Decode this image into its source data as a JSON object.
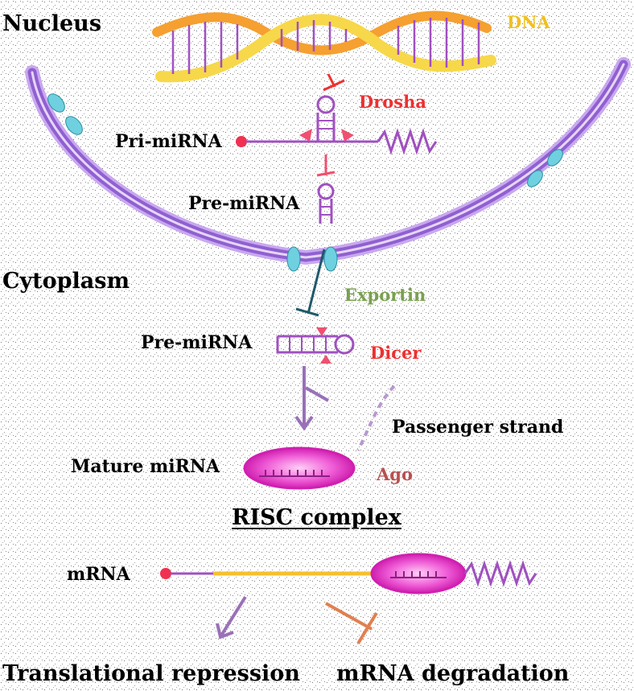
{
  "regions": {
    "nucleus": "Nucleus",
    "cytoplasm": "Cytoplasm"
  },
  "molecules": {
    "dna": "DNA",
    "pri_mirna": "Pri-miRNA",
    "pre_mirna_nuclear": "Pre-miRNA",
    "pre_mirna_cyto": "Pre-miRNA",
    "mature_mirna": "Mature miRNA",
    "passenger_strand": "Passenger strand",
    "mrna": "mRNA"
  },
  "enzymes": {
    "drosha": "Drosha",
    "exportin": "Exportin",
    "dicer": "Dicer",
    "ago": "Ago"
  },
  "complex": {
    "risc": "RISC complex"
  },
  "outcomes": {
    "translational_repression": "Translational repression",
    "mrna_degradation": "mRNA degradation"
  },
  "colors": {
    "membrane": "#9060d0",
    "membrane_light": "#c8a8f0",
    "pore": "#6fd0e0",
    "dna_strand_a": "#f5a030",
    "dna_strand_b": "#f7d84a",
    "rna": "#a050c0",
    "rna_cap": "#f03050",
    "drosha": "#ee3030",
    "dicer": "#ee3030",
    "exportin": "#1e5a6a",
    "ago": "#e838c8",
    "mrna_target": "#f5c030",
    "repression_arrow": "#9a70b8",
    "degradation_arrow": "#e08050"
  }
}
